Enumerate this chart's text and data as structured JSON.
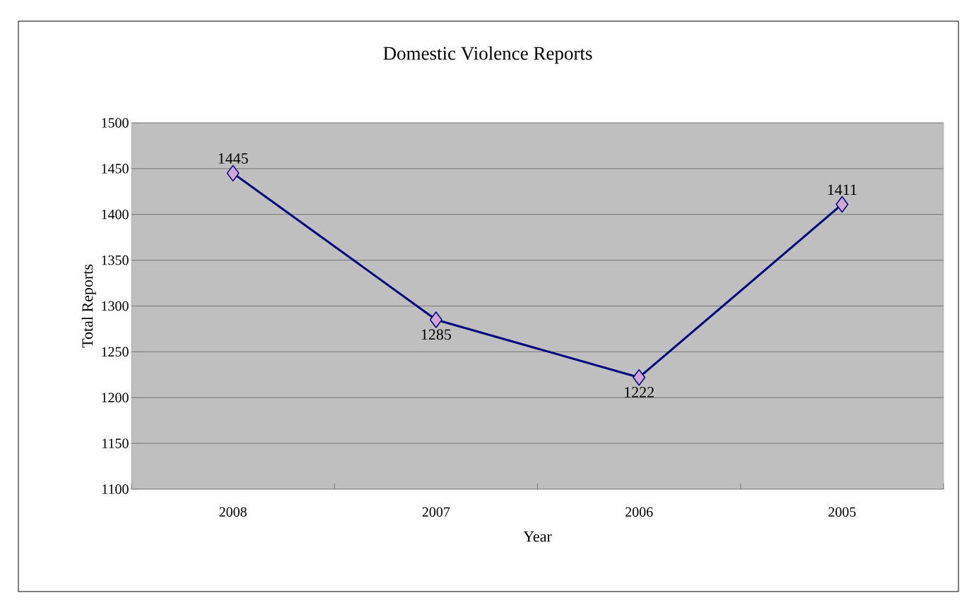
{
  "chart_data": {
    "type": "line",
    "title": "Domestic Violence Reports",
    "xlabel": "Year",
    "ylabel": "Total Reports",
    "categories": [
      "2008",
      "2007",
      "2006",
      "2005"
    ],
    "series": [
      {
        "color": "#000080",
        "values": [
          1445,
          1285,
          1222,
          1411
        ]
      }
    ],
    "ylim": [
      1100,
      1500
    ],
    "yticks": [
      1100,
      1150,
      1200,
      1250,
      1300,
      1350,
      1400,
      1450,
      1500
    ],
    "grid": "y",
    "marker": "diamond",
    "line_style": "solid",
    "data_labels": true
  }
}
